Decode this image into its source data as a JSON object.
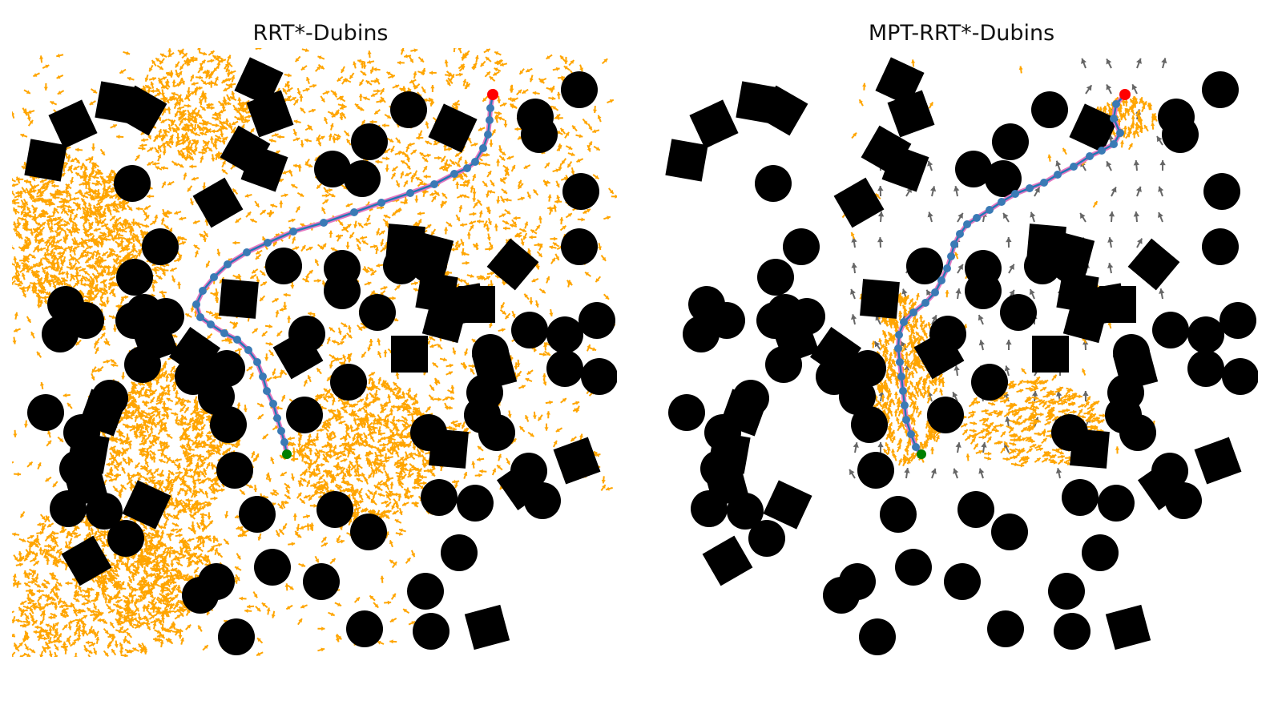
{
  "figure": {
    "panels": [
      {
        "title": "RRT*-Dubins"
      },
      {
        "title": "MPT-RRT*-Dubins"
      }
    ],
    "colors": {
      "obstacle": "#000000",
      "tree_rrt": "#ffa500",
      "mask_arrow": "#666666",
      "path_line": "#1f77b4",
      "path_waypoint": "#3a7ab5",
      "path_smooth": "#e377c2",
      "start_marker": "#008000",
      "goal_marker": "#ff0000"
    }
  }
}
